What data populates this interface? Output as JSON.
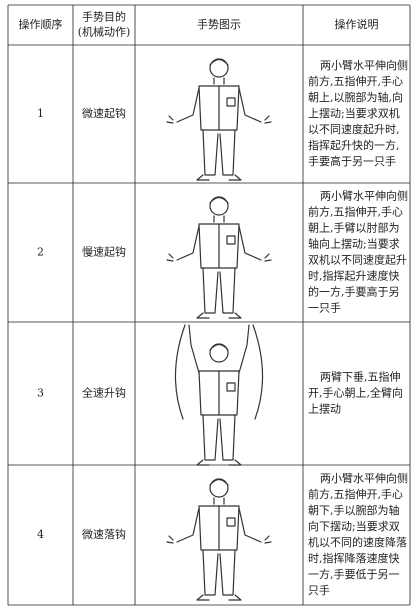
{
  "table": {
    "header": [
      "操作顺序",
      [
        "手势目的",
        "(机械动作)"
      ],
      "手势图示",
      "操作说明"
    ],
    "rows": [
      {
        "number": "1",
        "purpose": "微速起钩",
        "description": [
          "两小臂水平伸向侧",
          "前方,五指伸开,手心",
          "朝上,以腕部为轴,向",
          "上摆动;当要求双机",
          "以不同速度起升时,",
          "指挥起升快的一方,",
          "手要高于另一只手"
        ]
      },
      {
        "number": "2",
        "purpose": "慢速起钩",
        "description": [
          "两小臂水平伸向侧",
          "前方,五指伸开,手心",
          "朝上,手臂以肘部为",
          "轴向上摆动;当要求",
          "双机以不同速度起升",
          "时,指挥起升速度快",
          "的一方,手要高于另",
          "一只手"
        ]
      },
      {
        "number": "3",
        "purpose": "全速升钩",
        "description": [
          "两臂下垂,五指伸",
          "开,手心朝上,全臂向",
          "上摆动"
        ]
      },
      {
        "number": "4",
        "purpose": "微速落钩",
        "description": [
          "两小臂水平伸向侧",
          "前方,五指伸开,手心",
          "朝下,手以腕部为轴",
          "向下摆动;当要求双",
          "机以不同的速度降落",
          "时,指挥降落速度快",
          "一方,手要低于另一",
          "只手"
        ]
      }
    ]
  }
}
